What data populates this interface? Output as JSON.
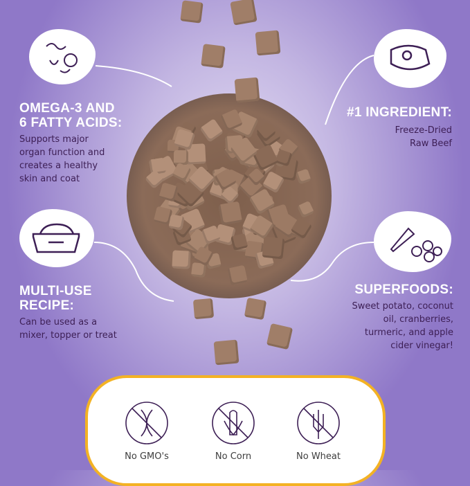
{
  "features": [
    {
      "icon": "omega-molecule-icon",
      "title_line1": "OMEGA-3 AND",
      "title_line2": "6 FATTY ACIDS:",
      "text": [
        "Supports major",
        "organ function and",
        "creates a healthy",
        "skin and coat"
      ]
    },
    {
      "icon": "steak-icon",
      "title_line1": "#1 INGREDIENT:",
      "text": [
        "Freeze-Dried",
        "Raw Beef"
      ]
    },
    {
      "icon": "food-bowl-bone-icon",
      "title_line1": "MULTI-USE",
      "title_line2": "RECIPE:",
      "text": [
        "Can be used as a",
        "mixer, topper or treat"
      ]
    },
    {
      "icon": "vegetables-berries-icon",
      "title_line1": "SUPERFOODS:",
      "text": [
        "Sweet potato, coconut",
        "oil, cranberries,",
        "turmeric, and apple",
        "cider vinegar!"
      ]
    }
  ],
  "badges": [
    {
      "icon": "no-gmo-dna-icon",
      "label": "No GMO's"
    },
    {
      "icon": "no-corn-icon",
      "label": "No Corn"
    },
    {
      "icon": "no-wheat-icon",
      "label": "No Wheat"
    }
  ],
  "colors": {
    "heading": "#ffffff",
    "body": "#3d1f55",
    "panel_border": "#f3b224",
    "background": "#8f78c8"
  }
}
